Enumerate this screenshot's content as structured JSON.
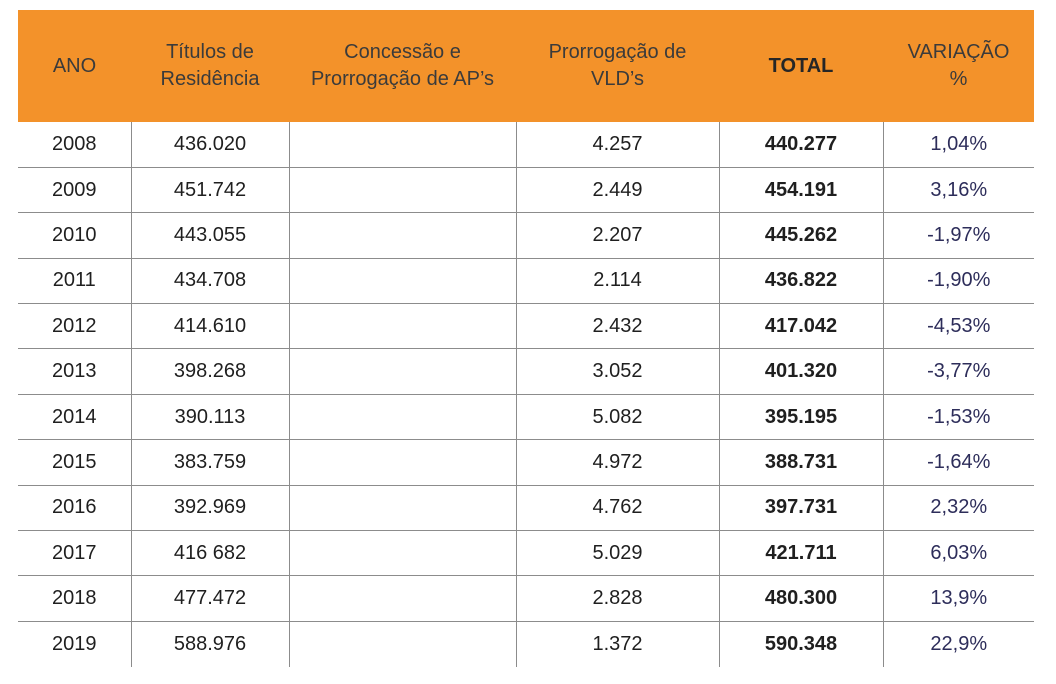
{
  "table": {
    "headers": {
      "ano": "ANO",
      "titulos_line1": "Títulos de",
      "titulos_line2": "Residência",
      "concessao_line1": "Concessão e",
      "concessao_line2": "Prorrogação de AP’s",
      "prorrogacao_line1": "Prorrogação de",
      "prorrogacao_line2": "VLD’s",
      "total": "TOTAL",
      "variacao_line1": "VARIAÇÃO",
      "variacao_line2": "%"
    },
    "rows": [
      {
        "ano": "2008",
        "titulos": "436.020",
        "concessao": "",
        "prorrogacao": "4.257",
        "total": "440.277",
        "variacao": "1,04%"
      },
      {
        "ano": "2009",
        "titulos": "451.742",
        "concessao": "",
        "prorrogacao": "2.449",
        "total": "454.191",
        "variacao": "3,16%"
      },
      {
        "ano": "2010",
        "titulos": "443.055",
        "concessao": "",
        "prorrogacao": "2.207",
        "total": "445.262",
        "variacao": "-1,97%"
      },
      {
        "ano": "2011",
        "titulos": "434.708",
        "concessao": "",
        "prorrogacao": "2.114",
        "total": "436.822",
        "variacao": "-1,90%"
      },
      {
        "ano": "2012",
        "titulos": "414.610",
        "concessao": "",
        "prorrogacao": "2.432",
        "total": "417.042",
        "variacao": "-4,53%"
      },
      {
        "ano": "2013",
        "titulos": "398.268",
        "concessao": "",
        "prorrogacao": "3.052",
        "total": "401.320",
        "variacao": "-3,77%"
      },
      {
        "ano": "2014",
        "titulos": "390.113",
        "concessao": "",
        "prorrogacao": "5.082",
        "total": "395.195",
        "variacao": "-1,53%"
      },
      {
        "ano": "2015",
        "titulos": "383.759",
        "concessao": "",
        "prorrogacao": "4.972",
        "total": "388.731",
        "variacao": "-1,64%"
      },
      {
        "ano": "2016",
        "titulos": "392.969",
        "concessao": "",
        "prorrogacao": "4.762",
        "total": "397.731",
        "variacao": "2,32%"
      },
      {
        "ano": "2017",
        "titulos": "416 682",
        "concessao": "",
        "prorrogacao": "5.029",
        "total": "421.711",
        "variacao": "6,03%"
      },
      {
        "ano": "2018",
        "titulos": "477.472",
        "concessao": "",
        "prorrogacao": "2.828",
        "total": "480.300",
        "variacao": "13,9%"
      },
      {
        "ano": "2019",
        "titulos": "588.976",
        "concessao": "",
        "prorrogacao": "1.372",
        "total": "590.348",
        "variacao": "22,9%"
      }
    ]
  },
  "colors": {
    "header_background": "#f3922a",
    "grid_line": "#8c8c8c",
    "variation_text": "#2d2d5a"
  }
}
